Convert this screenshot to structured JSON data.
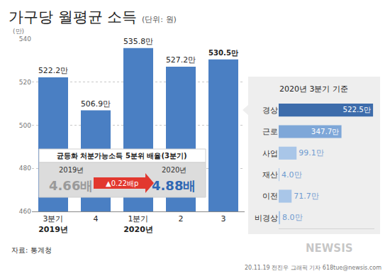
{
  "chart_data": [
    {
      "type": "bar",
      "title": "가구당 월평균 소득",
      "subtitle": "(단위: 원)",
      "y_label": "(만)",
      "categories": [
        "3분기\n2019년",
        "4",
        "1분기\n2020년",
        "2",
        "3"
      ],
      "values": [
        522.2,
        506.9,
        535.8,
        527.2,
        530.5
      ],
      "value_labels": [
        "522.2만",
        "506.9만",
        "535.8만",
        "527.2만",
        "530.5만"
      ],
      "data_labels": true,
      "color": "#4a7fc3",
      "ylim": [
        460,
        540
      ],
      "yticks": [
        460,
        480,
        500,
        520,
        540
      ],
      "grid": true,
      "callout": {
        "title": "균등화 처분가능소득 5분위 배율(3분기)",
        "from_label": "2019년",
        "from_value": 4.66,
        "from_value_label": "4.66배",
        "change": 0.22,
        "change_label": "▲0.22배p",
        "to_label": "2020년",
        "to_value": 4.88,
        "to_value_label": "4.88배"
      },
      "source": "자료: 통계청",
      "credit": "20.11.19 전진우 그래픽 기자 618tue@newsis.com",
      "watermark": "NEWSIS"
    },
    {
      "type": "bar",
      "orientation": "horizontal",
      "title": "2020년 3분기 기준",
      "categories": [
        "경상",
        "근로",
        "사업",
        "재산",
        "이전",
        "비경상"
      ],
      "values": [
        522.5,
        347.7,
        99.1,
        4.0,
        71.7,
        8.0
      ],
      "value_labels": [
        "522.5만",
        "347.7만",
        "99.1만",
        "4.0만",
        "71.7만",
        "8.0만"
      ],
      "colors": [
        "#3d6cab",
        "#7ea7d8",
        "#a9c6e8",
        "#a9c6e8",
        "#a9c6e8",
        "#a9c6e8"
      ],
      "data_labels": true,
      "xlim": [
        0,
        530
      ],
      "tick_labels": false
    }
  ]
}
